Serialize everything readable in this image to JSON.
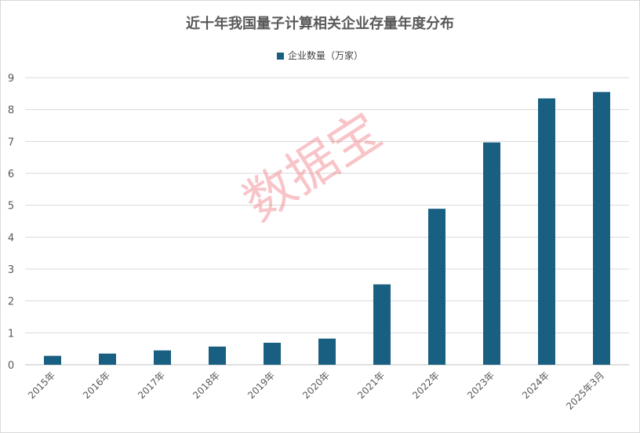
{
  "chart_data": {
    "type": "bar",
    "title": "近十年我国量子计算相关企业存量年度分布",
    "categories": [
      "2015年",
      "2016年",
      "2017年",
      "2018年",
      "2019年",
      "2020年",
      "2021年",
      "2022年",
      "2023年",
      "2024年",
      "2025年3月"
    ],
    "series": [
      {
        "name": "企业数量（万家）",
        "values": [
          0.28,
          0.35,
          0.45,
          0.57,
          0.69,
          0.82,
          2.52,
          4.89,
          6.97,
          8.35,
          8.55
        ]
      }
    ],
    "ylim": [
      0,
      9
    ],
    "yticks": [
      0,
      1,
      2,
      3,
      4,
      5,
      6,
      7,
      8,
      9
    ],
    "grid": true,
    "legend": "top-center",
    "xlabel": "",
    "ylabel": ""
  },
  "colors": {
    "bar": "#195f82",
    "grid": "#d9d9d9",
    "axis": "#bfbfbf",
    "watermark": "#ee6e78"
  },
  "watermark": "数据宝"
}
